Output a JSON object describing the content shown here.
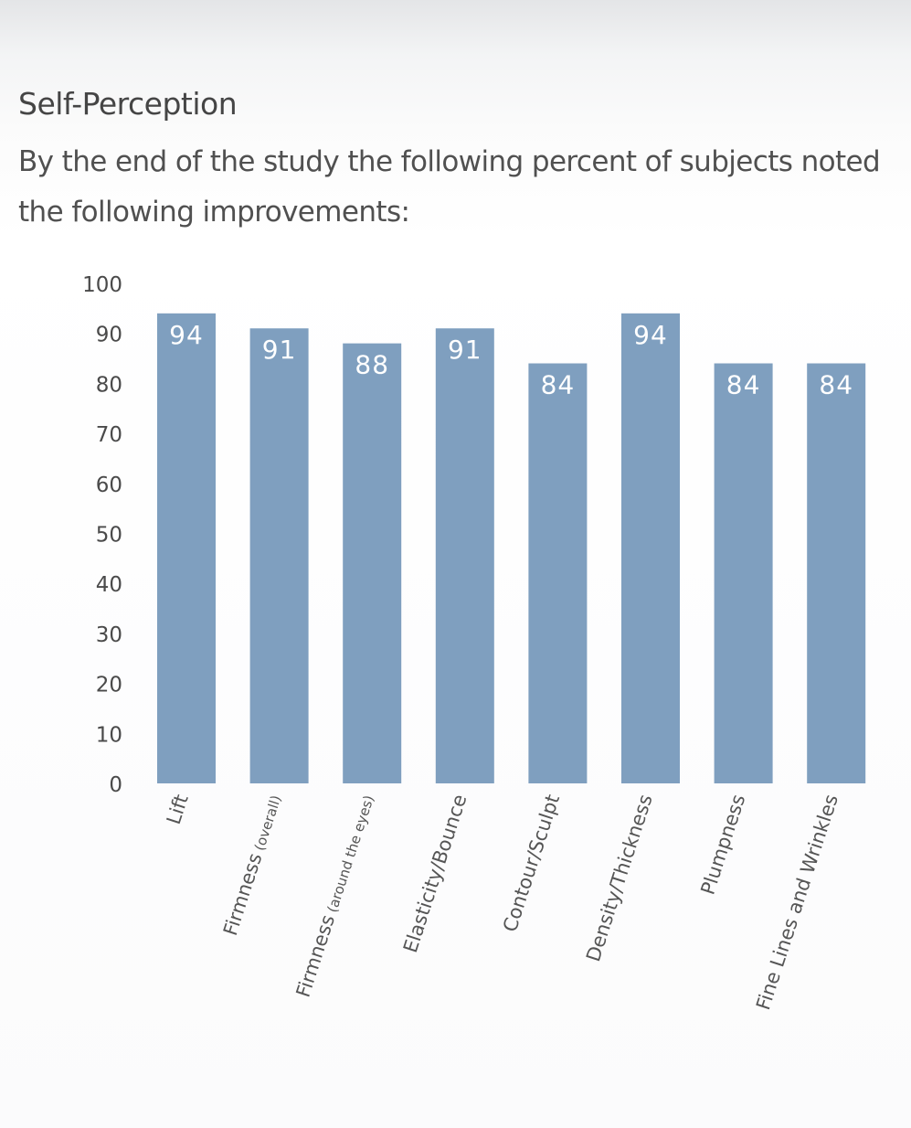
{
  "chart_data": {
    "type": "bar",
    "title": "Self-Perception",
    "subtitle": "By the end of the study the following percent of subjects noted the following improvements:",
    "xlabel": "",
    "ylabel": "",
    "ylim": [
      0,
      100
    ],
    "yticks": [
      0,
      10,
      20,
      30,
      40,
      50,
      60,
      70,
      80,
      90,
      100
    ],
    "grid": false,
    "categories": [
      {
        "main": "Lift",
        "qualifier": ""
      },
      {
        "main": "Firmness",
        "qualifier": "(overall)"
      },
      {
        "main": "Firmness",
        "qualifier": "(around the eyes)"
      },
      {
        "main": "Elasticity/Bounce",
        "qualifier": ""
      },
      {
        "main": "Contour/Sculpt",
        "qualifier": ""
      },
      {
        "main": "Density/Thickness",
        "qualifier": ""
      },
      {
        "main": "Plumpness",
        "qualifier": ""
      },
      {
        "main": "Fine Lines and Wrinkles",
        "qualifier": ""
      }
    ],
    "values": [
      94,
      91,
      88,
      91,
      84,
      94,
      84,
      84
    ],
    "bar_color": "#7f9fbf",
    "label_color": "#ffffff"
  }
}
